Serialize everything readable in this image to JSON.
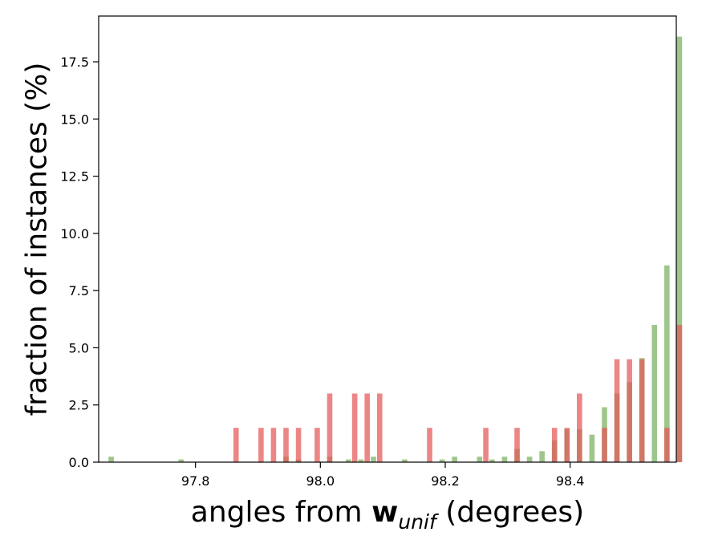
{
  "chart_data": {
    "type": "bar",
    "overlay": true,
    "xlabel": {
      "prefix": "angles from ",
      "bold": "w",
      "subscript": "unif",
      "suffix": " (degrees)"
    },
    "ylabel": "fraction of instances (%)",
    "xlim": [
      97.645,
      98.57
    ],
    "ylim": [
      0,
      19.5
    ],
    "xticks": [
      97.8,
      98.0,
      98.2,
      98.4
    ],
    "xtick_labels": [
      "97.8",
      "98.0",
      "98.2",
      "98.4"
    ],
    "yticks": [
      0,
      2.5,
      5.0,
      7.5,
      10.0,
      12.5,
      15.0,
      17.5
    ],
    "ytick_labels": [
      "0.0",
      "2.5",
      "5.0",
      "7.5",
      "10.0",
      "12.5",
      "15.0",
      "17.5"
    ],
    "bar_width": 0.0085,
    "grid": false,
    "legend": "none",
    "series": [
      {
        "color": "#6aa84f",
        "opacity": 0.65,
        "points": [
          [
            97.665,
            0.24
          ],
          [
            97.777,
            0.12
          ],
          [
            97.945,
            0.24
          ],
          [
            97.965,
            0.12
          ],
          [
            98.015,
            0.24
          ],
          [
            98.045,
            0.12
          ],
          [
            98.065,
            0.12
          ],
          [
            98.085,
            0.24
          ],
          [
            98.135,
            0.12
          ],
          [
            98.195,
            0.12
          ],
          [
            98.215,
            0.24
          ],
          [
            98.255,
            0.24
          ],
          [
            98.275,
            0.12
          ],
          [
            98.295,
            0.24
          ],
          [
            98.315,
            0.58
          ],
          [
            98.335,
            0.24
          ],
          [
            98.355,
            0.48
          ],
          [
            98.375,
            0.96
          ],
          [
            98.395,
            1.44
          ],
          [
            98.415,
            1.44
          ],
          [
            98.435,
            1.2
          ],
          [
            98.455,
            2.4
          ],
          [
            98.475,
            3.0
          ],
          [
            98.495,
            3.5
          ],
          [
            98.515,
            4.55
          ],
          [
            98.535,
            6.0
          ],
          [
            98.555,
            8.6
          ],
          [
            98.575,
            18.6
          ]
        ]
      },
      {
        "color": "#e45757",
        "opacity": 0.72,
        "points": [
          [
            97.865,
            1.5
          ],
          [
            97.905,
            1.5
          ],
          [
            97.925,
            1.5
          ],
          [
            97.945,
            1.5
          ],
          [
            97.965,
            1.5
          ],
          [
            97.995,
            1.5
          ],
          [
            98.015,
            3.0
          ],
          [
            98.055,
            3.0
          ],
          [
            98.075,
            3.0
          ],
          [
            98.095,
            3.0
          ],
          [
            98.175,
            1.5
          ],
          [
            98.265,
            1.5
          ],
          [
            98.315,
            1.5
          ],
          [
            98.375,
            1.5
          ],
          [
            98.395,
            1.5
          ],
          [
            98.415,
            3.0
          ],
          [
            98.455,
            1.5
          ],
          [
            98.475,
            4.5
          ],
          [
            98.495,
            4.5
          ],
          [
            98.515,
            4.5
          ],
          [
            98.555,
            1.5
          ],
          [
            98.575,
            6.0
          ]
        ]
      }
    ]
  }
}
